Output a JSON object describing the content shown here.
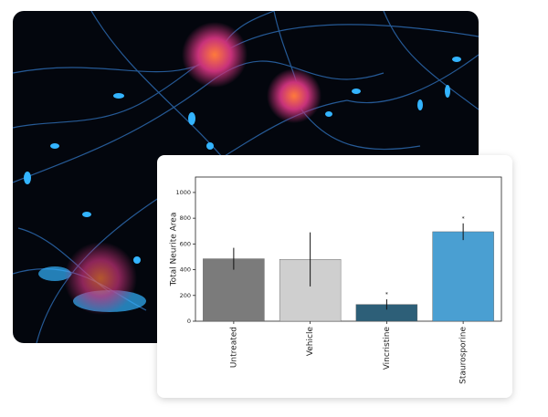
{
  "chart_data": {
    "type": "bar",
    "ylabel": "Total Neurite Area",
    "categories": [
      "Untreated",
      "Vehicle",
      "Vincristine",
      "Staurosporine"
    ],
    "values": [
      485,
      480,
      130,
      695
    ],
    "errors": [
      85,
      210,
      40,
      65
    ],
    "colors": [
      "#7b7b7b",
      "#cfcfcf",
      "#2d5f78",
      "#4a9fd2"
    ],
    "ylim": [
      0,
      1120
    ],
    "yticks": [
      0,
      200,
      400,
      600,
      800,
      1000
    ],
    "annotations": [
      {
        "text": "*",
        "x": "Vincristine"
      },
      {
        "text": "*",
        "x": "Staurosporine"
      }
    ]
  }
}
